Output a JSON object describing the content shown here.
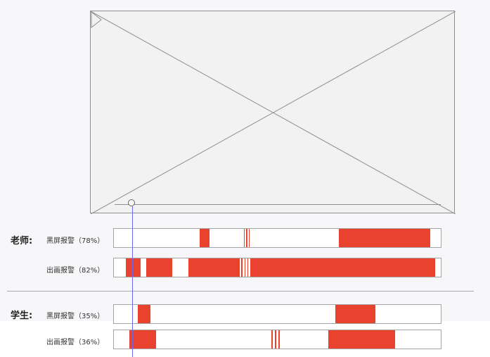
{
  "colors": {
    "alert": "#e9432f",
    "playhead": "#6f67f2"
  },
  "player": {
    "placeholder": "video-placeholder",
    "play_icon": "play-icon"
  },
  "teacher": {
    "label": "老师:",
    "rows": [
      {
        "label": "黑屏报警（78%）",
        "segments": [
          {
            "start": 0.262,
            "end": 0.292
          },
          {
            "start": 0.397,
            "end": 0.4
          },
          {
            "start": 0.405,
            "end": 0.408
          },
          {
            "start": 0.413,
            "end": 0.416
          },
          {
            "start": 0.689,
            "end": 0.967
          }
        ]
      },
      {
        "label": "出画报警（82%）",
        "segments": [
          {
            "start": 0.036,
            "end": 0.081
          },
          {
            "start": 0.099,
            "end": 0.178
          },
          {
            "start": 0.227,
            "end": 0.385
          },
          {
            "start": 0.39,
            "end": 0.393
          },
          {
            "start": 0.399,
            "end": 0.402
          },
          {
            "start": 0.408,
            "end": 0.411
          },
          {
            "start": 0.418,
            "end": 0.983
          }
        ]
      }
    ]
  },
  "student": {
    "label": "学生:",
    "rows": [
      {
        "label": "黑屏报警（35%）",
        "segments": [
          {
            "start": 0.073,
            "end": 0.111
          },
          {
            "start": 0.678,
            "end": 0.801
          }
        ]
      },
      {
        "label": "出画报警（36%）",
        "segments": [
          {
            "start": 0.047,
            "end": 0.128
          },
          {
            "start": 0.481,
            "end": 0.486
          },
          {
            "start": 0.492,
            "end": 0.497
          },
          {
            "start": 0.503,
            "end": 0.508
          },
          {
            "start": 0.656,
            "end": 0.861
          }
        ]
      }
    ]
  }
}
